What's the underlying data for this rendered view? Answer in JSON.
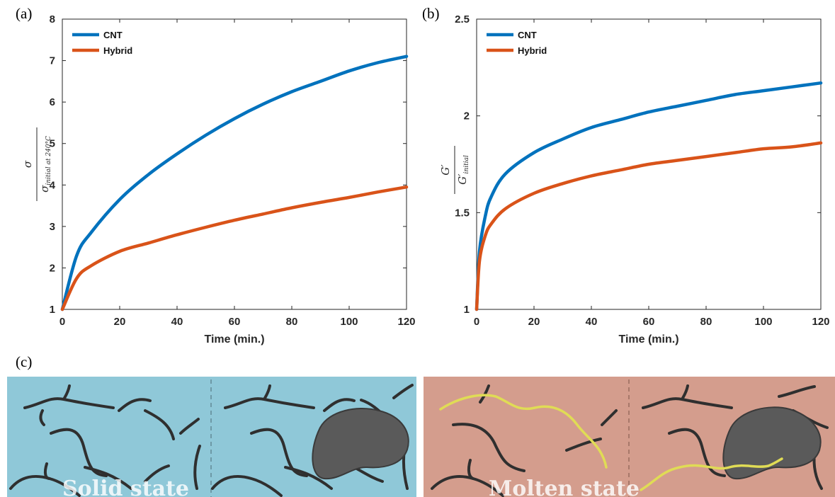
{
  "chart_data": [
    {
      "panel": "(a)",
      "type": "line",
      "xlabel": "Time (min.)",
      "ylabel": "σ / σ initial at 240°C",
      "xlim": [
        0,
        120
      ],
      "ylim": [
        1,
        8
      ],
      "xticks": [
        0,
        20,
        40,
        60,
        80,
        100,
        120
      ],
      "yticks": [
        1,
        2,
        3,
        4,
        5,
        6,
        7,
        8
      ],
      "legend": "top-left",
      "grid": false,
      "series": [
        {
          "name": "CNT",
          "color": "#0072BD",
          "x": [
            0,
            5,
            10,
            20,
            30,
            40,
            50,
            60,
            70,
            80,
            90,
            100,
            110,
            120
          ],
          "y": [
            1.0,
            2.3,
            2.85,
            3.65,
            4.25,
            4.75,
            5.2,
            5.6,
            5.95,
            6.25,
            6.5,
            6.75,
            6.95,
            7.1
          ]
        },
        {
          "name": "Hybrid",
          "color": "#D95319",
          "x": [
            0,
            5,
            10,
            20,
            30,
            40,
            50,
            60,
            70,
            80,
            90,
            100,
            110,
            120
          ],
          "y": [
            1.0,
            1.75,
            2.05,
            2.4,
            2.6,
            2.8,
            2.98,
            3.15,
            3.3,
            3.45,
            3.58,
            3.7,
            3.83,
            3.95
          ]
        }
      ]
    },
    {
      "panel": "(b)",
      "type": "line",
      "xlabel": "Time (min.)",
      "ylabel": "G′ / G′ initial",
      "xlim": [
        0,
        120
      ],
      "ylim": [
        1,
        2.5
      ],
      "xticks": [
        0,
        20,
        40,
        60,
        80,
        100,
        120
      ],
      "yticks": [
        1,
        1.5,
        2,
        2.5
      ],
      "legend": "top-left",
      "grid": false,
      "series": [
        {
          "name": "CNT",
          "color": "#0072BD",
          "x": [
            0,
            1,
            3,
            5,
            10,
            20,
            30,
            40,
            50,
            60,
            70,
            80,
            90,
            100,
            110,
            120
          ],
          "y": [
            1.0,
            1.3,
            1.48,
            1.58,
            1.7,
            1.81,
            1.88,
            1.94,
            1.98,
            2.02,
            2.05,
            2.08,
            2.11,
            2.13,
            2.15,
            2.17
          ]
        },
        {
          "name": "Hybrid",
          "color": "#D95319",
          "x": [
            0,
            1,
            3,
            5,
            10,
            20,
            30,
            40,
            50,
            60,
            70,
            80,
            90,
            100,
            110,
            120
          ],
          "y": [
            1.0,
            1.25,
            1.38,
            1.44,
            1.52,
            1.6,
            1.65,
            1.69,
            1.72,
            1.75,
            1.77,
            1.79,
            1.81,
            1.83,
            1.84,
            1.86
          ]
        }
      ]
    }
  ],
  "illustration": {
    "panel": "(c)",
    "solid": {
      "label": "Solid state",
      "background": "#8fc8d8"
    },
    "molten": {
      "label": "Molten state",
      "background": "#d49d8d"
    }
  }
}
